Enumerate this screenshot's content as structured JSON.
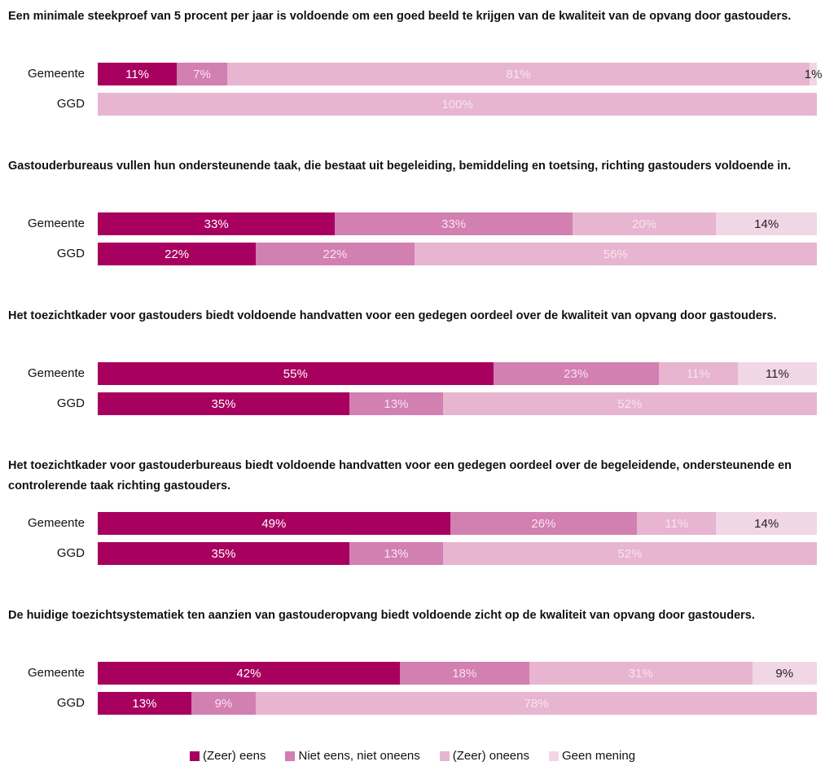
{
  "chart_data": {
    "type": "bar",
    "orientation": "horizontal",
    "stacked": true,
    "legend_position": "bottom",
    "series": [
      {
        "name": "(Zeer) eens",
        "color": "#a8005e",
        "label_color": "#ffffff"
      },
      {
        "name": "Niet eens, niet oneens",
        "color": "#d27fb1",
        "label_color": "#fbe3ef"
      },
      {
        "name": "(Zeer) oneens",
        "color": "#e7b5d0",
        "label_color": "#f8e4ee"
      },
      {
        "name": "Geen mening",
        "color": "#f1d6e5",
        "label_color": "#222222"
      }
    ],
    "panels": [
      {
        "title": "Een minimale steekproef van 5 procent per jaar is voldoende om een goed beeld te krijgen van de kwaliteit van de opvang door gastouders.",
        "categories": [
          "Gemeente",
          "GGD"
        ],
        "values": [
          [
            11,
            7,
            81,
            1
          ],
          [
            null,
            null,
            100,
            null
          ]
        ],
        "value_labels": [
          [
            "11%",
            "7%",
            "81%",
            "1%"
          ],
          [
            null,
            null,
            "100%",
            null
          ]
        ]
      },
      {
        "title": "Gastouderbureaus vullen hun ondersteunende taak, die bestaat uit begeleiding, bemiddeling en toetsing, richting gastouders voldoende in.",
        "categories": [
          "Gemeente",
          "GGD"
        ],
        "values": [
          [
            33,
            33,
            20,
            14
          ],
          [
            22,
            22,
            56,
            null
          ]
        ],
        "value_labels": [
          [
            "33%",
            "33%",
            "20%",
            "14%"
          ],
          [
            "22%",
            "22%",
            "56%",
            null
          ]
        ]
      },
      {
        "title": "Het toezichtkader voor gastouders biedt voldoende handvatten voor een gedegen oordeel over de kwaliteit van opvang door gastouders.",
        "categories": [
          "Gemeente",
          "GGD"
        ],
        "values": [
          [
            55,
            23,
            11,
            11
          ],
          [
            35,
            13,
            52,
            null
          ]
        ],
        "value_labels": [
          [
            "55%",
            "23%",
            "11%",
            "11%"
          ],
          [
            "35%",
            "13%",
            "52%",
            null
          ]
        ]
      },
      {
        "title": "Het toezichtkader voor gastouderbureaus biedt voldoende handvatten voor een gedegen oordeel over de begeleidende, ondersteunende en controlerende taak richting gastouders.",
        "categories": [
          "Gemeente",
          "GGD"
        ],
        "values": [
          [
            49,
            26,
            11,
            14
          ],
          [
            35,
            13,
            52,
            null
          ]
        ],
        "value_labels": [
          [
            "49%",
            "26%",
            "11%",
            "14%"
          ],
          [
            "35%",
            "13%",
            "52%",
            null
          ]
        ]
      },
      {
        "title": "De huidige toezichtsystematiek ten aanzien van gastouderopvang biedt voldoende zicht op de kwaliteit van opvang door gastouders.",
        "categories": [
          "Gemeente",
          "GGD"
        ],
        "values": [
          [
            42,
            18,
            31,
            9
          ],
          [
            13,
            9,
            78,
            null
          ]
        ],
        "value_labels": [
          [
            "42%",
            "18%",
            "31%",
            "9%"
          ],
          [
            "13%",
            "9%",
            "78%",
            null
          ]
        ]
      }
    ]
  }
}
